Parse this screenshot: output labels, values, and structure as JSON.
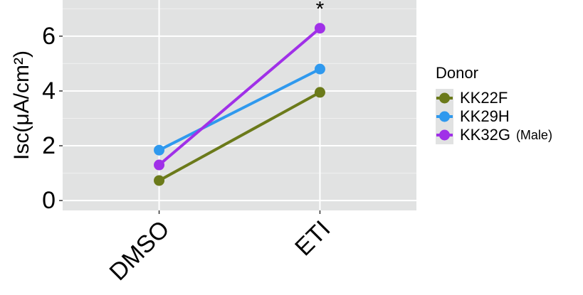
{
  "chart_data": {
    "type": "line",
    "y_label": "Isc(μA/cm²)",
    "categories": [
      "DMSO",
      "ETI"
    ],
    "series": [
      {
        "name": "KK22F",
        "color": "#6b7a1a",
        "values": [
          0.73,
          3.95
        ]
      },
      {
        "name": "KK29H",
        "color": "#2f99ee",
        "values": [
          1.84,
          4.8
        ]
      },
      {
        "name": "KK32G",
        "color": "#a030e8",
        "values": [
          1.3,
          6.29
        ]
      }
    ],
    "legend_title": "Donor",
    "annotations": [
      "*",
      "(Male)"
    ],
    "ylim": [
      -0.36,
      7.32
    ],
    "yticks": [
      0,
      2,
      4,
      6
    ],
    "minor_yticks": [
      1,
      3,
      5,
      7
    ],
    "grid": true,
    "legend": "right"
  }
}
